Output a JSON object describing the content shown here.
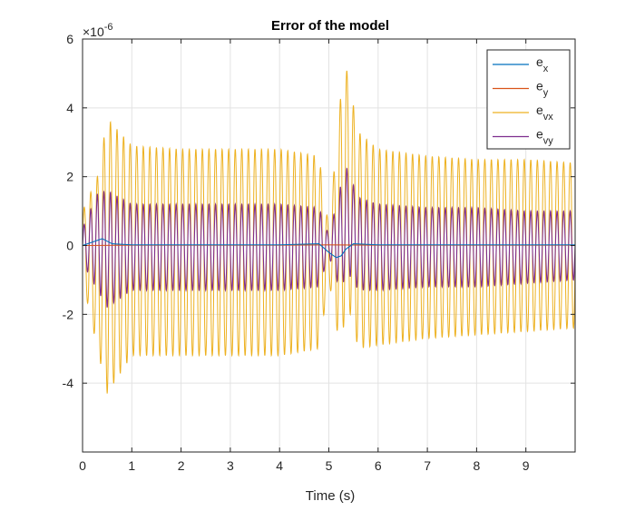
{
  "chart_data": {
    "type": "line",
    "title": "Error of the model",
    "xlabel": "Time (s)",
    "ylabel": "",
    "xlim": [
      0,
      10
    ],
    "ylim": [
      -6,
      6
    ],
    "y_exponent_label": "×10",
    "y_exponent_power": "-6",
    "grid": true,
    "legend_position": "top-right",
    "xticks": [
      "0",
      "1",
      "2",
      "3",
      "4",
      "5",
      "6",
      "7",
      "8",
      "9"
    ],
    "xtick_values": [
      0,
      1,
      2,
      3,
      4,
      5,
      6,
      7,
      8,
      9
    ],
    "yticks": [
      "-4",
      "-2",
      "0",
      "2",
      "4",
      "6"
    ],
    "ytick_values": [
      -4,
      -2,
      0,
      2,
      4,
      6
    ],
    "series": [
      {
        "name": "e",
        "subscript": "x",
        "color": "#0072BD",
        "description": "small error near zero, about ±0.1e-6, with transient near t=5.2",
        "x": [
          0,
          0.2,
          0.4,
          0.6,
          1,
          2,
          3,
          4,
          4.8,
          5.0,
          5.15,
          5.25,
          5.35,
          5.5,
          6,
          7,
          8,
          9,
          10
        ],
        "y": [
          0,
          0.1,
          0.2,
          0.05,
          0.02,
          0.02,
          0.02,
          0.02,
          0.05,
          -0.2,
          -0.35,
          -0.3,
          -0.1,
          0.05,
          0.02,
          0.02,
          0.02,
          0.02,
          0.02
        ]
      },
      {
        "name": "e",
        "subscript": "y",
        "color": "#D95319",
        "description": "near zero",
        "x": [
          0,
          1,
          2,
          3,
          4,
          5,
          6,
          7,
          8,
          9,
          10
        ],
        "y": [
          0,
          0.01,
          0.01,
          0.01,
          0.01,
          0.02,
          0.01,
          0.01,
          0.01,
          0.01,
          0.01
        ]
      },
      {
        "name": "e",
        "subscript": "vx",
        "color": "#EDB120",
        "description": "high-frequency oscillation with envelope",
        "envelope_x": [
          0,
          0.3,
          0.5,
          1.0,
          2.0,
          3.0,
          4.0,
          4.8,
          5.0,
          5.25,
          5.35,
          5.6,
          6.0,
          7.0,
          8.0,
          9.0,
          10.0
        ],
        "envelope_upper": [
          1.0,
          2.0,
          3.7,
          2.9,
          2.8,
          2.8,
          2.8,
          2.6,
          0.5,
          4.5,
          5.2,
          3.3,
          2.8,
          2.6,
          2.5,
          2.5,
          2.4
        ],
        "envelope_lower": [
          -1.0,
          -3.0,
          -4.3,
          -3.2,
          -3.2,
          -3.2,
          -3.2,
          -3.0,
          -1.0,
          -3.2,
          -1.5,
          -3.0,
          -2.9,
          -2.7,
          -2.6,
          -2.5,
          -2.4
        ],
        "frequency_hz": 7.5
      },
      {
        "name": "e",
        "subscript": "vy",
        "color": "#7E2F8E",
        "description": "high-frequency oscillation with envelope",
        "envelope_x": [
          0,
          0.3,
          0.5,
          1.0,
          2.0,
          3.0,
          4.0,
          4.8,
          5.0,
          5.25,
          5.35,
          5.6,
          6.0,
          7.0,
          8.0,
          9.0,
          10.0
        ],
        "envelope_upper": [
          0.5,
          1.5,
          1.6,
          1.2,
          1.2,
          1.2,
          1.2,
          1.1,
          0.3,
          1.8,
          2.3,
          1.4,
          1.2,
          1.1,
          1.1,
          1.0,
          1.0
        ],
        "envelope_lower": [
          -0.5,
          -1.3,
          -1.8,
          -1.3,
          -1.3,
          -1.3,
          -1.3,
          -1.2,
          -0.3,
          -1.4,
          -0.7,
          -1.3,
          -1.3,
          -1.2,
          -1.2,
          -1.1,
          -1.0
        ],
        "frequency_hz": 7.5
      }
    ]
  }
}
